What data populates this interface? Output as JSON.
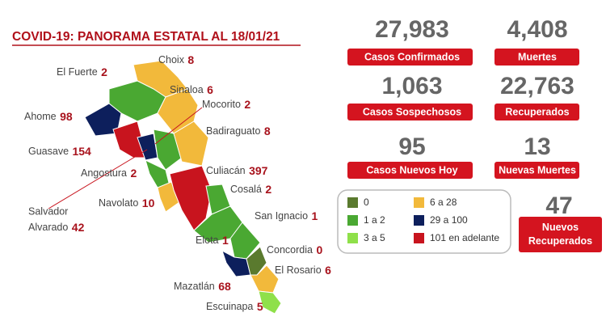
{
  "header": {
    "title": "COVID-19: PANORAMA ESTATAL AL 18/01/21"
  },
  "stats": [
    {
      "value": "27,983",
      "label": "Casos Confirmados"
    },
    {
      "value": "4,408",
      "label": "Muertes"
    },
    {
      "value": "1,063",
      "label": "Casos Sospechosos"
    },
    {
      "value": "22,763",
      "label": "Recuperados"
    },
    {
      "value": "95",
      "label": "Casos Nuevos Hoy"
    },
    {
      "value": "13",
      "label": "Nuevas Muertes"
    },
    {
      "value": "47",
      "label": "Nuevos Recuperados"
    }
  ],
  "legend": [
    {
      "label": "0",
      "color": "#5a7a2e"
    },
    {
      "label": "1 a 2",
      "color": "#4aa832"
    },
    {
      "label": "3 a 5",
      "color": "#8fe04a"
    },
    {
      "label": "6 a 28",
      "color": "#f2b93b"
    },
    {
      "label": "29 a 100",
      "color": "#0d1f5c"
    },
    {
      "label": "101 en adelante",
      "color": "#c8141e"
    }
  ],
  "municipalities": [
    {
      "name": "El Fuerte",
      "value": "2"
    },
    {
      "name": "Choix",
      "value": "8"
    },
    {
      "name": "Sinaloa",
      "value": "6"
    },
    {
      "name": "Ahome",
      "value": "98"
    },
    {
      "name": "Mocorito",
      "value": "2"
    },
    {
      "name": "Badiraguato",
      "value": "8"
    },
    {
      "name": "Guasave",
      "value": "154"
    },
    {
      "name": "Angostura",
      "value": "2"
    },
    {
      "name": "Culiacán",
      "value": "397"
    },
    {
      "name": "Cosalá",
      "value": "2"
    },
    {
      "name": "Navolato",
      "value": "10"
    },
    {
      "name": "San Ignacio",
      "value": "1"
    },
    {
      "name": "Elota",
      "value": "1"
    },
    {
      "name": "Concordia",
      "value": "0"
    },
    {
      "name": "El Rosario",
      "value": "6"
    },
    {
      "name": "Mazatlán",
      "value": "68"
    },
    {
      "name": "Escuinapa",
      "value": "5"
    },
    {
      "name": "Salvador",
      "name2": "Alvarado",
      "value": "42"
    }
  ]
}
